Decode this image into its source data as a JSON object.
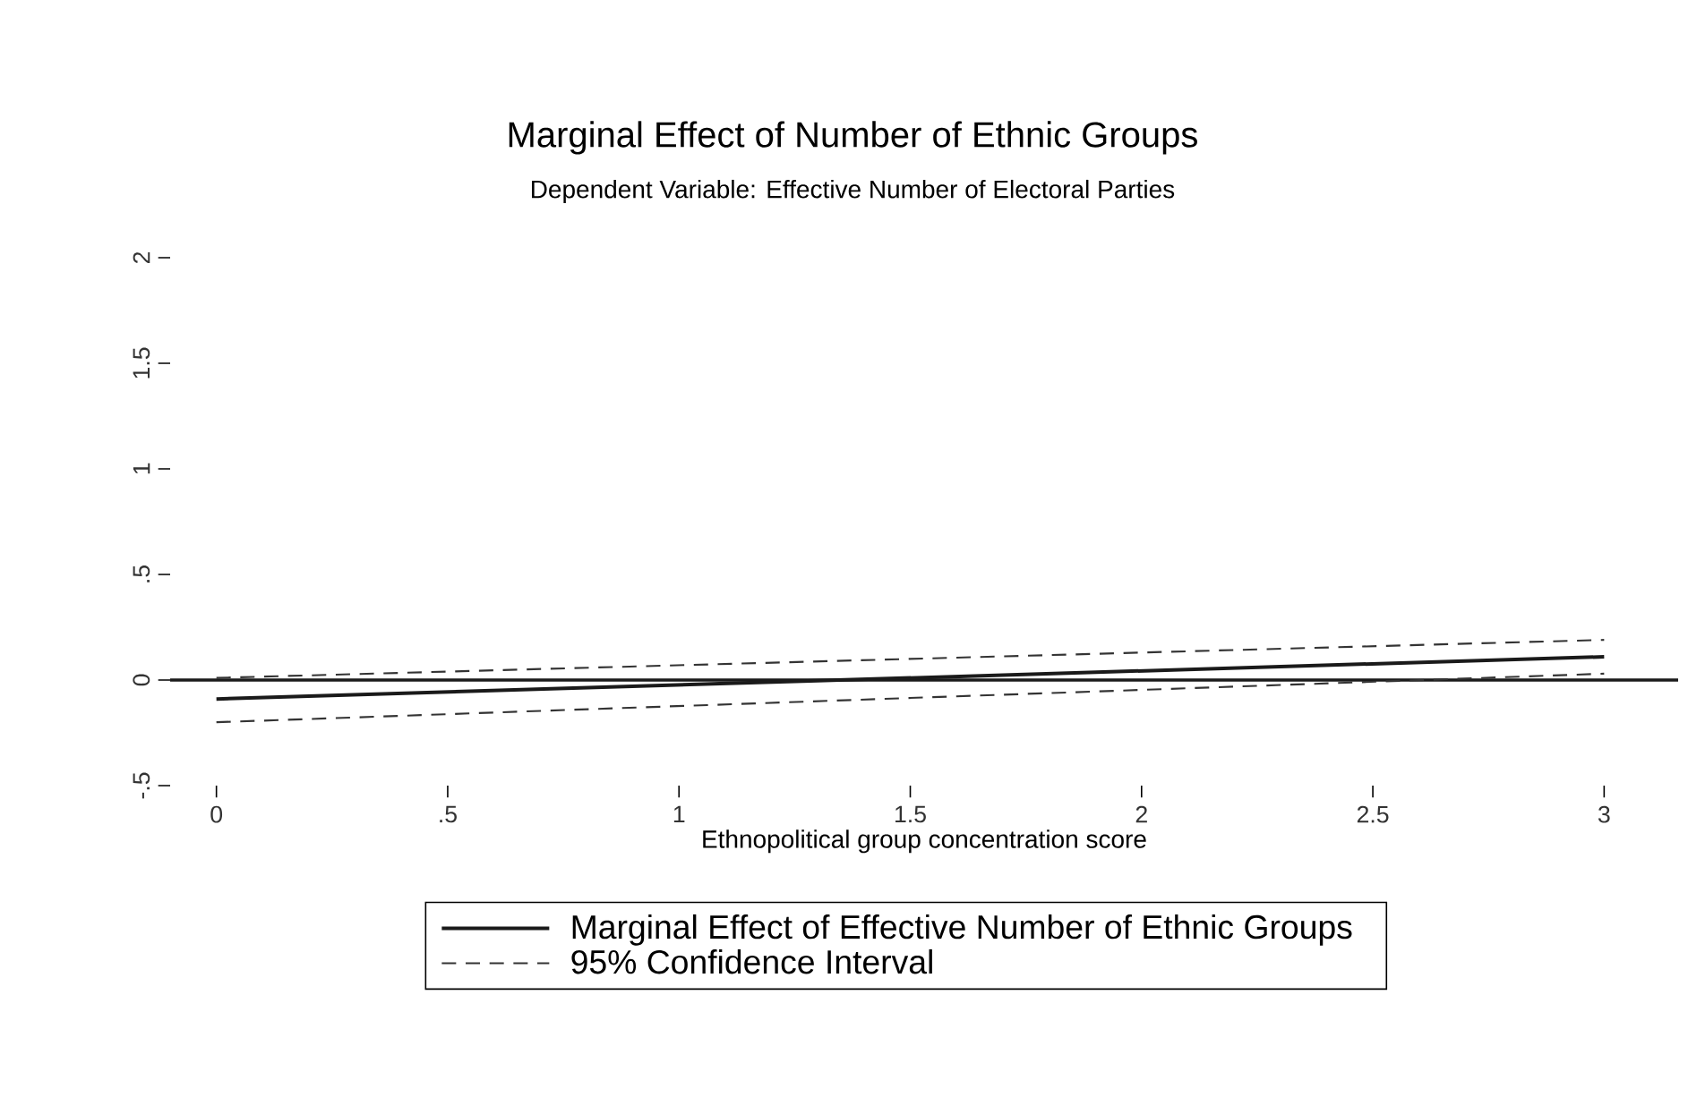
{
  "chart_data": {
    "type": "line",
    "title": "Marginal Effect of Number of Ethnic Groups",
    "subtitle": "Dependent Variable: Effective Number of Electoral Parties",
    "xlabel": "Ethnopolitical group concentration score",
    "x": [
      0,
      3
    ],
    "series": [
      {
        "name": "Marginal Effect of Effective Number of Ethnic Groups",
        "color": "#1a1a1a",
        "values": [
          -0.09,
          0.11
        ],
        "line_style": "solid"
      },
      {
        "name": "95% Confidence Interval",
        "color": "#333333",
        "values": [
          0.01,
          0.19
        ],
        "line_style": "dashed"
      },
      {
        "color": "#333333",
        "values": [
          -0.2,
          0.03
        ],
        "line_style": "dashed"
      }
    ],
    "xlim": [
      -0.1,
      3.16
    ],
    "ylim": [
      -0.5,
      2
    ],
    "xticks": [
      0,
      {
        "value": 0.5,
        "label": ".5"
      },
      1,
      1.5,
      2,
      2.5,
      3
    ],
    "yticks": [
      {
        "value": -0.5,
        "label": "-.5"
      },
      0,
      {
        "value": 0.5,
        "label": ".5"
      },
      1,
      1.5,
      2
    ],
    "ref_lines": [
      {
        "axis": "y",
        "value": 0,
        "color": "#1a1a1a"
      }
    ],
    "legend": "bottom"
  }
}
